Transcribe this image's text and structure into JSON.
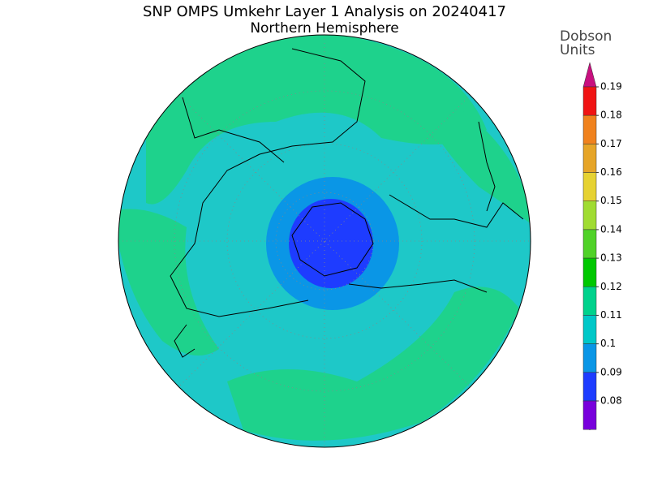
{
  "title": "SNP OMPS Umkehr Layer 1 Analysis on 20240417",
  "subtitle": "Northern Hemisphere",
  "colorbar": {
    "label": [
      "Dobson",
      "Units"
    ],
    "ticks": [
      0.19,
      0.18,
      0.17,
      0.16,
      0.15,
      0.14,
      0.13,
      0.12,
      0.11,
      0.1,
      0.09,
      0.08
    ],
    "above_color": "#c8107f",
    "segment_colors": [
      "#f01414",
      "#f0821e",
      "#e6a528",
      "#e6d232",
      "#a0dc32",
      "#50d228",
      "#00c800",
      "#00d28c",
      "#00c8c8",
      "#0a96e6",
      "#1e3cff",
      "#7800dc"
    ],
    "below_color": "#a000c8"
  }
}
